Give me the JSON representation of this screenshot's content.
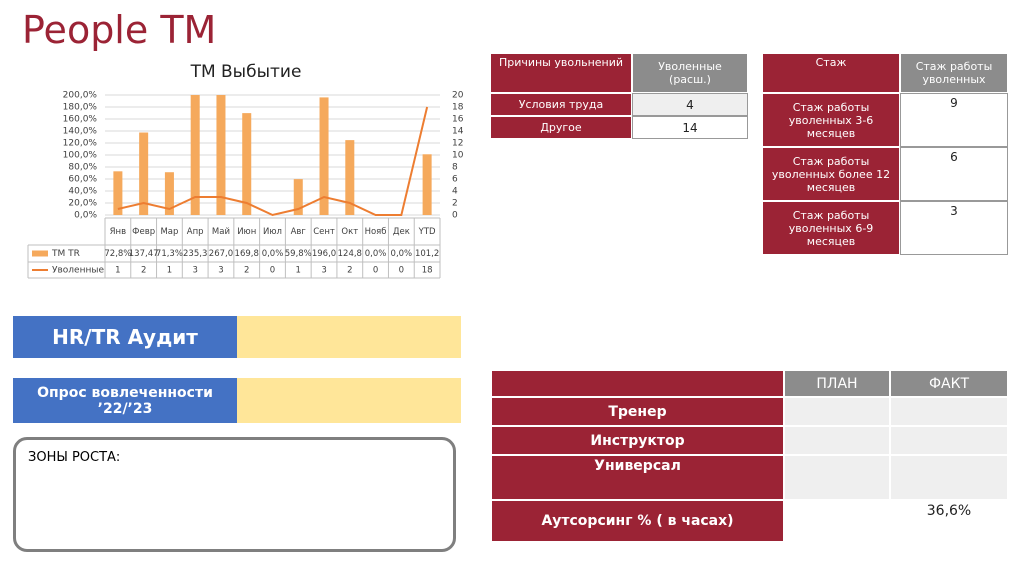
{
  "title": "People TM",
  "chart_data": {
    "type": "bar",
    "title": "TM Выбытие",
    "categories": [
      "Янв",
      "Февр",
      "Мар",
      "Апр",
      "Май",
      "Июн",
      "Июл",
      "Авг",
      "Сент",
      "Окт",
      "Нояб",
      "Дек",
      "YTD"
    ],
    "series": [
      {
        "name": "TM TR",
        "color": "#f5a95c",
        "type": "bar",
        "values": [
          72.8,
          137.47,
          71.3,
          235.3,
          267.0,
          169.8,
          0.0,
          59.8,
          196.0,
          124.8,
          0.0,
          0.0,
          101.2
        ],
        "value_labels": [
          "72,8%",
          "137,47",
          "71,3%",
          "235,3",
          "267,0",
          "169,8",
          "0,0%",
          "59,8%",
          "196,0",
          "124,8",
          "0,0%",
          "0,0%",
          "101,2"
        ]
      },
      {
        "name": "Уволенные",
        "color": "#ed7d31",
        "type": "line",
        "axis": "y2",
        "values": [
          1,
          2,
          1,
          3,
          3,
          2,
          0,
          1,
          3,
          2,
          0,
          0,
          18
        ]
      }
    ],
    "ylim": [
      0,
      200
    ],
    "yticks": [
      {
        "value": 0,
        "label": "0,0%"
      },
      {
        "value": 20,
        "label": "20,0%"
      },
      {
        "value": 40,
        "label": "40,0%"
      },
      {
        "value": 60,
        "label": "60,0%"
      },
      {
        "value": 80,
        "label": "80,0%"
      },
      {
        "value": 100,
        "label": "100,0%"
      },
      {
        "value": 120,
        "label": "120,0%"
      },
      {
        "value": 140,
        "label": "140,0%"
      },
      {
        "value": 160,
        "label": "160,0%"
      },
      {
        "value": 180,
        "label": "180,0%"
      },
      {
        "value": 200,
        "label": "200,0%"
      }
    ],
    "y2lim": [
      0,
      20
    ],
    "y2ticks": [
      0,
      2,
      4,
      6,
      8,
      10,
      12,
      14,
      16,
      18,
      20
    ],
    "grid": true
  },
  "reasons": {
    "header": [
      "Причины увольнений",
      "Уволенные (расш.)"
    ],
    "rows": [
      [
        "Условия труда",
        "4"
      ],
      [
        "Другое",
        "14"
      ]
    ]
  },
  "tenure": {
    "header": [
      "Стаж",
      "Стаж работы уволенных"
    ],
    "rows": [
      [
        "Стаж работы уволенных 3-6 месяцев",
        "9"
      ],
      [
        "Стаж работы уволенных более 12 месяцев",
        "6"
      ],
      [
        "Стаж работы уволенных 6-9 месяцев",
        "3"
      ]
    ]
  },
  "hr_audit": "HR/TR Аудит",
  "survey": "Опрос вовлеченности ’22/’23",
  "growth_zones": "ЗОНЫ РОСТА:",
  "plan": {
    "header": [
      "ПЛАН",
      "ФАКТ"
    ],
    "rows": [
      [
        "Тренер"
      ],
      [
        "Инструктор"
      ],
      [
        "Универсал"
      ],
      [
        "Аутсорсинг % ( в часах)",
        "36,6%"
      ]
    ]
  }
}
